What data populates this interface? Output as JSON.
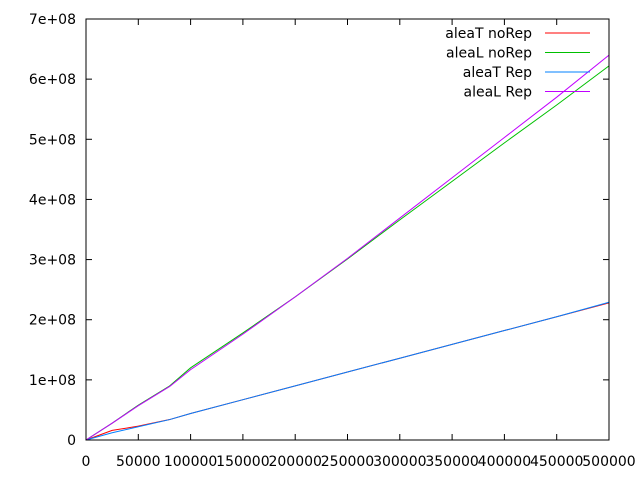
{
  "chart_data": {
    "type": "line",
    "title": "",
    "xlabel": "",
    "ylabel": "",
    "xlim": [
      0,
      500000
    ],
    "ylim": [
      0,
      700000000
    ],
    "x_ticks": [
      0,
      50000,
      100000,
      150000,
      200000,
      250000,
      300000,
      350000,
      400000,
      450000,
      500000
    ],
    "x_tick_labels": [
      "0",
      "50000",
      "100000",
      "150000",
      "200000",
      "250000",
      "300000",
      "350000",
      "400000",
      "450000",
      "500000"
    ],
    "y_ticks": [
      0,
      100000000,
      200000000,
      300000000,
      400000000,
      500000000,
      600000000,
      700000000
    ],
    "y_tick_labels": [
      "0",
      "1e+08",
      "2e+08",
      "3e+08",
      "4e+08",
      "5e+08",
      "6e+08",
      "7e+08"
    ],
    "grid": false,
    "legend_position": "top-right",
    "series": [
      {
        "name": "aleaT noRep",
        "color": "#ff0000",
        "points": [
          [
            0,
            0
          ],
          [
            25000,
            16000000
          ],
          [
            50000,
            23000000
          ],
          [
            80000,
            34000000
          ],
          [
            100000,
            44000000
          ],
          [
            150000,
            67000000
          ],
          [
            200000,
            90000000
          ],
          [
            250000,
            113000000
          ],
          [
            300000,
            136000000
          ],
          [
            350000,
            159000000
          ],
          [
            400000,
            182000000
          ],
          [
            450000,
            205000000
          ],
          [
            500000,
            228000000
          ]
        ]
      },
      {
        "name": "aleaL noRep",
        "color": "#00c000",
        "points": [
          [
            0,
            0
          ],
          [
            25000,
            28000000
          ],
          [
            50000,
            58000000
          ],
          [
            80000,
            90000000
          ],
          [
            100000,
            120000000
          ],
          [
            150000,
            178000000
          ],
          [
            200000,
            238000000
          ],
          [
            250000,
            301000000
          ],
          [
            300000,
            366000000
          ],
          [
            350000,
            430000000
          ],
          [
            400000,
            494000000
          ],
          [
            450000,
            557000000
          ],
          [
            500000,
            622000000
          ]
        ]
      },
      {
        "name": "aleaT Rep",
        "color": "#0080ff",
        "points": [
          [
            0,
            0
          ],
          [
            25000,
            12000000
          ],
          [
            50000,
            22000000
          ],
          [
            80000,
            34000000
          ],
          [
            100000,
            44000000
          ],
          [
            150000,
            67000000
          ],
          [
            200000,
            90000000
          ],
          [
            250000,
            113000000
          ],
          [
            300000,
            136000000
          ],
          [
            350000,
            159000000
          ],
          [
            400000,
            182000000
          ],
          [
            450000,
            205000000
          ],
          [
            500000,
            229000000
          ]
        ]
      },
      {
        "name": "aleaL Rep",
        "color": "#c000ff",
        "points": [
          [
            0,
            0
          ],
          [
            25000,
            28000000
          ],
          [
            50000,
            57000000
          ],
          [
            80000,
            89000000
          ],
          [
            100000,
            117000000
          ],
          [
            150000,
            176000000
          ],
          [
            200000,
            238000000
          ],
          [
            250000,
            302000000
          ],
          [
            300000,
            369000000
          ],
          [
            350000,
            436000000
          ],
          [
            400000,
            503000000
          ],
          [
            450000,
            570000000
          ],
          [
            500000,
            640000000
          ]
        ]
      }
    ]
  }
}
